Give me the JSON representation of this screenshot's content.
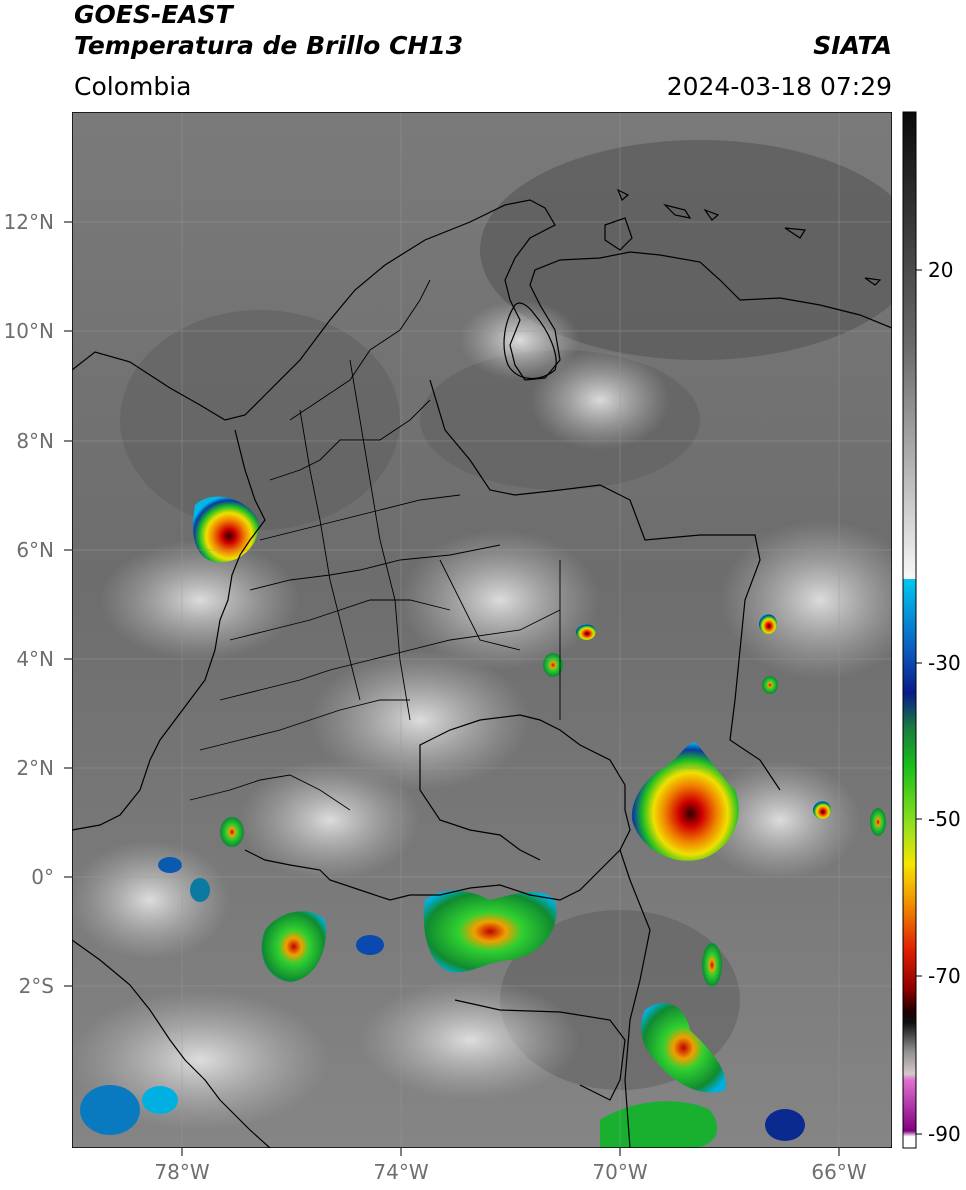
{
  "header": {
    "satellite": "GOES-EAST",
    "product": "Temperatura de Brillo CH13",
    "region": "Colombia",
    "agency": "SIATA",
    "timestamp": "2024-03-18 07:29"
  },
  "map": {
    "latitude_labels": [
      "12°N",
      "10°N",
      "8°N",
      "6°N",
      "4°N",
      "2°N",
      "0°",
      "2°S"
    ],
    "longitude_labels": [
      "78°W",
      "74°W",
      "70°W",
      "66°W"
    ],
    "gridlines": true
  },
  "colorbar": {
    "tick_labels": [
      "20",
      "-30",
      "-50",
      "-70",
      "-90"
    ],
    "colors": {
      "warm": "#1a1a1a",
      "cold_cyan": "#00c8f0",
      "blue": "#0a2a9a",
      "green": "#19c019",
      "yellow": "#f5e600",
      "orange": "#f09000",
      "red": "#d00000",
      "dark_red": "#500000",
      "pink": "#e070d0",
      "purple": "#800080"
    }
  }
}
